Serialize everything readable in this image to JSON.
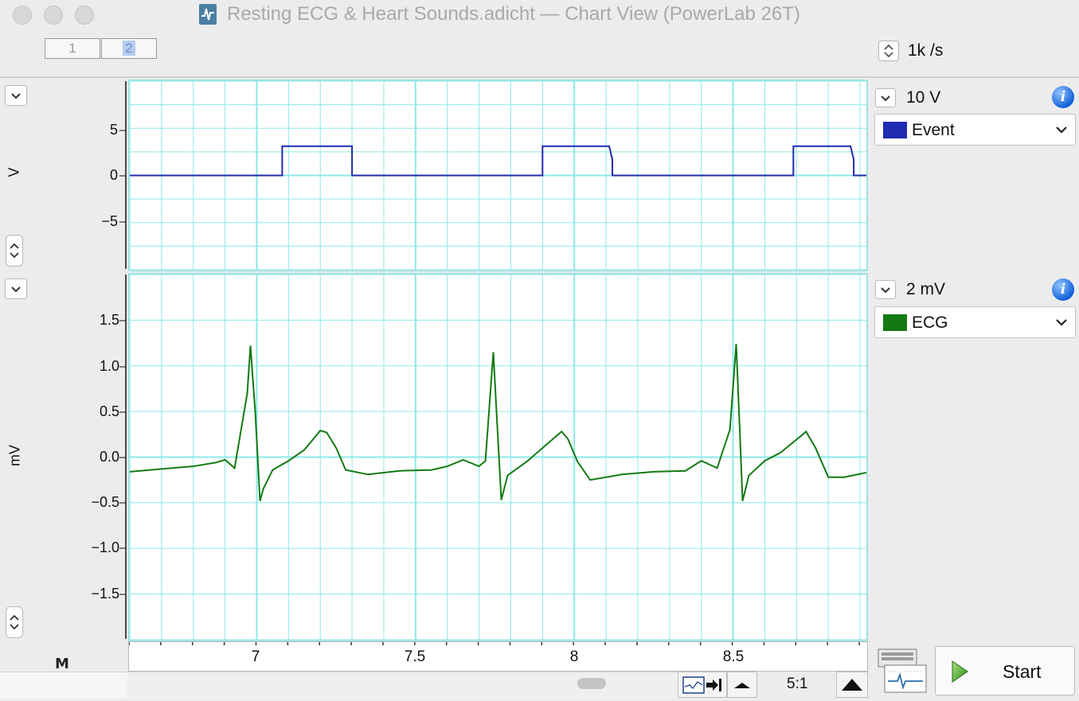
{
  "window": {
    "title": "Resting ECG & Heart Sounds.adicht — Chart View (PowerLab 26T)"
  },
  "toolbar": {
    "pages": [
      "1",
      "2"
    ],
    "sample_rate": "1k /s"
  },
  "channels": [
    {
      "unit": "V",
      "range": "10 V",
      "name": "Event",
      "color": "#1f2bb0",
      "y_ticks": [
        "5",
        "0",
        "−5"
      ]
    },
    {
      "unit": "mV",
      "range": "2 mV",
      "name": "ECG",
      "color": "#137a13",
      "y_ticks": [
        "1.5",
        "1.0",
        "0.5",
        "0.0",
        "−0.5",
        "−1.0",
        "−1.5"
      ]
    }
  ],
  "time_axis": {
    "ticks": [
      "7",
      "7.5",
      "8",
      "8.5"
    ]
  },
  "bottom": {
    "zoom_ratio": "5:1",
    "start_label": "Start",
    "marker_label": "M"
  },
  "chart_data": [
    {
      "type": "line",
      "name": "Event",
      "xlim": [
        6.6,
        8.92
      ],
      "ylim": [
        -10,
        10
      ],
      "y_ticks": [
        5,
        0,
        -5
      ],
      "x_ticks": [
        7,
        7.5,
        8,
        8.5
      ],
      "grid": true,
      "series": [
        {
          "name": "Event",
          "points": [
            [
              6.6,
              0
            ],
            [
              7.08,
              0
            ],
            [
              7.08,
              3.1
            ],
            [
              7.3,
              3.1
            ],
            [
              7.3,
              0
            ],
            [
              7.9,
              0
            ],
            [
              7.9,
              3.1
            ],
            [
              8.11,
              3.1
            ],
            [
              8.12,
              1.7
            ],
            [
              8.12,
              0
            ],
            [
              8.69,
              0
            ],
            [
              8.69,
              3.1
            ],
            [
              8.87,
              3.1
            ],
            [
              8.88,
              1.7
            ],
            [
              8.88,
              0
            ],
            [
              8.92,
              0
            ]
          ]
        }
      ]
    },
    {
      "type": "line",
      "name": "ECG",
      "xlim": [
        6.6,
        8.92
      ],
      "ylim": [
        -2,
        2
      ],
      "y_ticks": [
        1.5,
        1.0,
        0.5,
        0.0,
        -0.5,
        -1.0,
        -1.5
      ],
      "x_ticks": [
        7,
        7.5,
        8,
        8.5
      ],
      "grid": true,
      "series": [
        {
          "name": "ECG",
          "points": [
            [
              6.6,
              -0.16
            ],
            [
              6.7,
              -0.13
            ],
            [
              6.8,
              -0.1
            ],
            [
              6.87,
              -0.06
            ],
            [
              6.9,
              -0.03
            ],
            [
              6.93,
              -0.12
            ],
            [
              6.97,
              0.7
            ],
            [
              6.98,
              1.22
            ],
            [
              6.995,
              0.5
            ],
            [
              7.01,
              -0.48
            ],
            [
              7.02,
              -0.35
            ],
            [
              7.05,
              -0.14
            ],
            [
              7.1,
              -0.04
            ],
            [
              7.15,
              0.08
            ],
            [
              7.2,
              0.29
            ],
            [
              7.22,
              0.27
            ],
            [
              7.25,
              0.1
            ],
            [
              7.28,
              -0.14
            ],
            [
              7.35,
              -0.19
            ],
            [
              7.45,
              -0.15
            ],
            [
              7.55,
              -0.14
            ],
            [
              7.6,
              -0.1
            ],
            [
              7.65,
              -0.03
            ],
            [
              7.7,
              -0.1
            ],
            [
              7.72,
              -0.04
            ],
            [
              7.745,
              1.15
            ],
            [
              7.755,
              0.5
            ],
            [
              7.77,
              -0.47
            ],
            [
              7.79,
              -0.2
            ],
            [
              7.85,
              -0.05
            ],
            [
              7.9,
              0.1
            ],
            [
              7.96,
              0.28
            ],
            [
              7.98,
              0.2
            ],
            [
              8.01,
              -0.05
            ],
            [
              8.05,
              -0.25
            ],
            [
              8.15,
              -0.19
            ],
            [
              8.25,
              -0.16
            ],
            [
              8.35,
              -0.15
            ],
            [
              8.4,
              -0.04
            ],
            [
              8.45,
              -0.12
            ],
            [
              8.49,
              0.3
            ],
            [
              8.51,
              1.24
            ],
            [
              8.52,
              0.4
            ],
            [
              8.53,
              -0.48
            ],
            [
              8.55,
              -0.2
            ],
            [
              8.6,
              -0.04
            ],
            [
              8.65,
              0.05
            ],
            [
              8.72,
              0.25
            ],
            [
              8.73,
              0.28
            ],
            [
              8.76,
              0.1
            ],
            [
              8.8,
              -0.22
            ],
            [
              8.85,
              -0.22
            ],
            [
              8.92,
              -0.17
            ]
          ]
        }
      ]
    }
  ]
}
